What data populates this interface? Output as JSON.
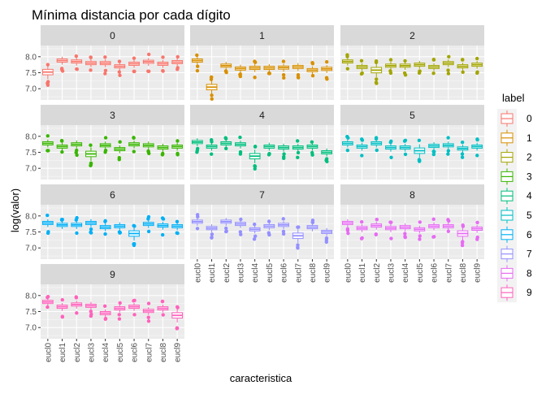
{
  "chart_data": {
    "type": "boxplot",
    "title": "Mínima distancia por cada dígito",
    "xlabel": "caracteristica",
    "ylabel": "log(valor)",
    "facet_var": "label",
    "grid": true,
    "legend_position": "right",
    "ylim": [
      6.65,
      8.35
    ],
    "y_ticks": [
      7.0,
      7.5,
      8.0
    ],
    "y_tick_labels": [
      "7.0",
      "7.5",
      "8.0"
    ],
    "categories": [
      "eucl0",
      "eucl1",
      "eucl2",
      "eucl3",
      "eucl4",
      "eucl5",
      "eucl6",
      "eucl7",
      "eucl8",
      "eucl9"
    ],
    "legend": {
      "title": "label",
      "items": [
        {
          "label": "0",
          "color": "#F8766D"
        },
        {
          "label": "1",
          "color": "#D89000"
        },
        {
          "label": "2",
          "color": "#A3A500"
        },
        {
          "label": "3",
          "color": "#39B600"
        },
        {
          "label": "4",
          "color": "#00BF7D"
        },
        {
          "label": "5",
          "color": "#00BFC4"
        },
        {
          "label": "6",
          "color": "#00B0F6"
        },
        {
          "label": "7",
          "color": "#9590FF"
        },
        {
          "label": "8",
          "color": "#E76BF3"
        },
        {
          "label": "9",
          "color": "#FF62BC"
        }
      ]
    },
    "facets": [
      {
        "label": "0",
        "color": "#F8766D",
        "medians": [
          7.52,
          7.88,
          7.85,
          7.8,
          7.8,
          7.7,
          7.78,
          7.84,
          7.78,
          7.83
        ]
      },
      {
        "label": "1",
        "color": "#D89000",
        "medians": [
          7.88,
          7.05,
          7.72,
          7.63,
          7.65,
          7.65,
          7.66,
          7.68,
          7.58,
          7.62
        ]
      },
      {
        "label": "2",
        "color": "#A3A500",
        "medians": [
          7.85,
          7.68,
          7.58,
          7.72,
          7.72,
          7.75,
          7.68,
          7.8,
          7.7,
          7.75
        ]
      },
      {
        "label": "3",
        "color": "#39B600",
        "medians": [
          7.78,
          7.68,
          7.75,
          7.45,
          7.72,
          7.6,
          7.75,
          7.72,
          7.65,
          7.68
        ]
      },
      {
        "label": "4",
        "color": "#00BF7D",
        "medians": [
          7.82,
          7.68,
          7.78,
          7.75,
          7.38,
          7.68,
          7.65,
          7.65,
          7.68,
          7.5
        ]
      },
      {
        "label": "5",
        "color": "#00BFC4",
        "medians": [
          7.78,
          7.68,
          7.78,
          7.65,
          7.65,
          7.55,
          7.7,
          7.72,
          7.62,
          7.68
        ]
      },
      {
        "label": "6",
        "color": "#00B0F6",
        "medians": [
          7.78,
          7.72,
          7.72,
          7.78,
          7.65,
          7.68,
          7.45,
          7.75,
          7.7,
          7.68
        ]
      },
      {
        "label": "7",
        "color": "#9590FF",
        "medians": [
          7.82,
          7.62,
          7.82,
          7.75,
          7.58,
          7.68,
          7.72,
          7.38,
          7.65,
          7.5
        ]
      },
      {
        "label": "8",
        "color": "#E76BF3",
        "medians": [
          7.78,
          7.62,
          7.7,
          7.62,
          7.65,
          7.58,
          7.68,
          7.68,
          7.45,
          7.6
        ]
      },
      {
        "label": "9",
        "color": "#FF62BC",
        "medians": [
          7.8,
          7.65,
          7.72,
          7.68,
          7.45,
          7.6,
          7.65,
          7.52,
          7.6,
          7.38
        ]
      }
    ]
  }
}
